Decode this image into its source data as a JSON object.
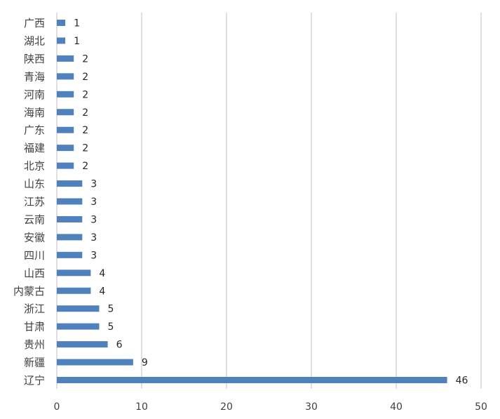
{
  "chart_data": {
    "type": "bar",
    "orientation": "horizontal",
    "title": "",
    "xlabel": "",
    "ylabel": "",
    "categories": [
      "广西",
      "湖北",
      "陕西",
      "青海",
      "河南",
      "海南",
      "广东",
      "福建",
      "北京",
      "山东",
      "江苏",
      "云南",
      "安徽",
      "四川",
      "山西",
      "内蒙古",
      "浙江",
      "甘肃",
      "贵州",
      "新疆",
      "辽宁"
    ],
    "values": [
      1,
      1,
      2,
      2,
      2,
      2,
      2,
      2,
      2,
      3,
      3,
      3,
      3,
      3,
      4,
      4,
      5,
      5,
      6,
      9,
      46
    ],
    "xlim": [
      0,
      50
    ],
    "xticks": [
      0,
      10,
      20,
      30,
      40,
      50
    ],
    "grid": true,
    "data_labels": true,
    "bar_color": "#4f81bd"
  }
}
